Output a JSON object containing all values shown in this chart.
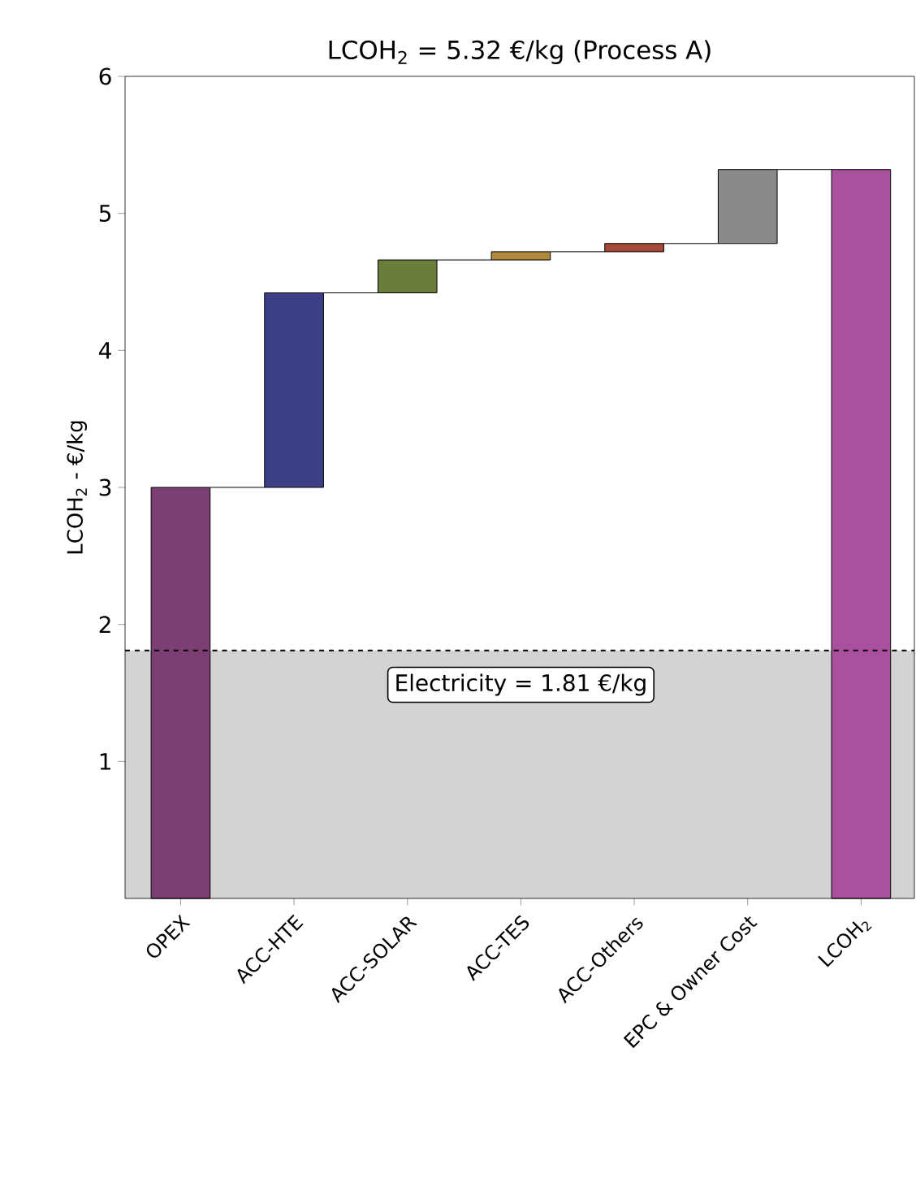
{
  "chart_data": {
    "type": "bar",
    "title": "LCOH$_{2}$ = 5.32 €/kg (Process A)",
    "ylabel": "LCOH$_{2}$ - €/kg",
    "categories": [
      "OPEX",
      "ACC-HTE",
      "ACC-SOLAR",
      "ACC-TES",
      "ACC-Others",
      "EPC & Owner Cost",
      "LCOH$_{2}$"
    ],
    "values": [
      3.0,
      1.42,
      0.24,
      0.06,
      0.06,
      0.54,
      5.32
    ],
    "base": [
      0,
      3.0,
      4.42,
      4.66,
      4.72,
      4.78,
      0
    ],
    "colors": [
      "#7b3f74",
      "#3c3f86",
      "#6a7d3a",
      "#b08a3c",
      "#a5493a",
      "#8a8a8a",
      "#a9509e"
    ],
    "ylim": [
      0,
      6
    ],
    "yticks": [
      1,
      2,
      3,
      4,
      5,
      6
    ],
    "ref_lines": [
      {
        "axis": "y",
        "value": 1.81,
        "label": "Electricity = 1.81 €/kg",
        "line_style": "dashed",
        "color": "#000000"
      }
    ],
    "bands": [
      {
        "axis": "y",
        "from": 0,
        "to": 1.81,
        "color": "#d3d3d3"
      }
    ]
  }
}
